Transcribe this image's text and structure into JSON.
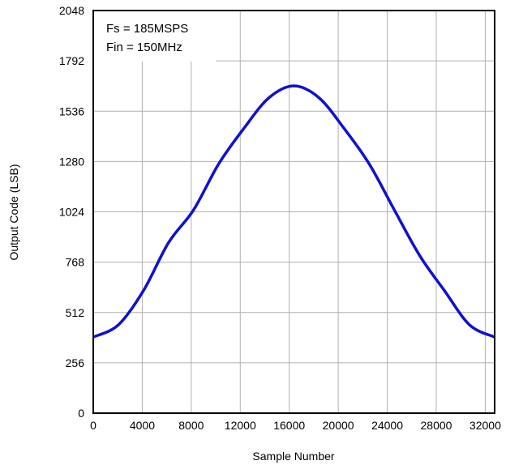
{
  "chart_data": {
    "type": "line",
    "xlabel": "Sample Number",
    "ylabel": "Output Code (LSB)",
    "xlim": [
      0,
      32768
    ],
    "ylim": [
      0,
      2048
    ],
    "xticks": [
      "0",
      "4000",
      "8000",
      "12000",
      "16000",
      "20000",
      "24000",
      "28000",
      "32000"
    ],
    "xtick_values": [
      0,
      4000,
      8000,
      12000,
      16000,
      20000,
      24000,
      28000,
      32000
    ],
    "yticks": [
      "0",
      "256",
      "512",
      "768",
      "1024",
      "1280",
      "1536",
      "1792",
      "2048"
    ],
    "ytick_values": [
      0,
      256,
      512,
      768,
      1024,
      1280,
      1536,
      1792,
      2048
    ],
    "grid": true,
    "annotations": [
      "Fs = 185MSPS",
      "Fin = 150MHz"
    ],
    "series": [
      {
        "color": "#1010d0",
        "x": [
          0,
          2048,
          4096,
          6144,
          8192,
          10240,
          12288,
          14336,
          16384,
          18432,
          20480,
          22528,
          24576,
          26624,
          28672,
          30720,
          32768
        ],
        "y": [
          387,
          449,
          623,
          867,
          1034,
          1268,
          1448,
          1604,
          1665,
          1604,
          1448,
          1268,
          1034,
          804,
          623,
          449,
          387
        ]
      }
    ]
  }
}
